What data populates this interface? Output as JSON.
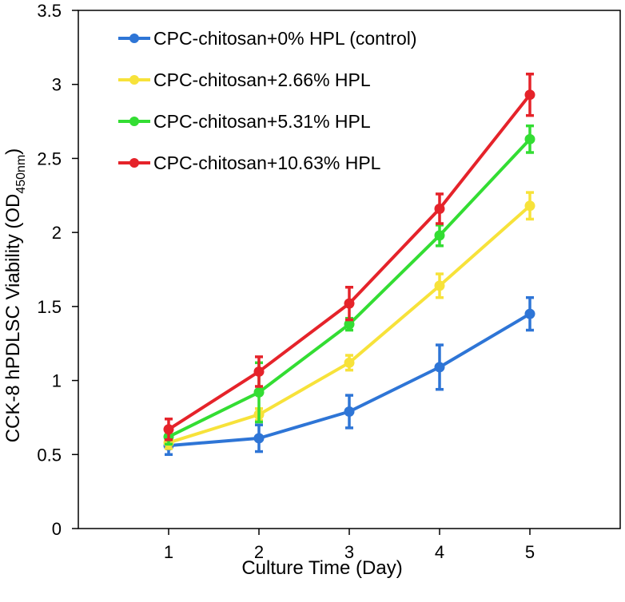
{
  "chart_data": {
    "type": "line",
    "title": "",
    "xlabel": "Culture Time (Day)",
    "ylabel_main": "CCK-8 hPDLSC Viability  (OD",
    "ylabel_sub": "450nm",
    "ylabel_close": ")",
    "x": [
      1,
      2,
      3,
      4,
      5
    ],
    "xlim": [
      0,
      6
    ],
    "ylim": [
      0,
      3.5
    ],
    "x_ticks": [
      "1",
      "2",
      "3",
      "4",
      "5"
    ],
    "y_ticks": [
      "0",
      "0.5",
      "1",
      "1.5",
      "2",
      "2.5",
      "3",
      "3.5"
    ],
    "y_tick_values": [
      0,
      0.5,
      1,
      1.5,
      2,
      2.5,
      3,
      3.5
    ],
    "legend_position": "top-left",
    "series": [
      {
        "name": "CPC-chitosan+0% HPL (control)",
        "color": "#2E75D6",
        "values": [
          0.56,
          0.61,
          0.79,
          1.09,
          1.45
        ],
        "errors": [
          0.06,
          0.09,
          0.11,
          0.15,
          0.11
        ]
      },
      {
        "name": "CPC-chitosan+2.66% HPL",
        "color": "#F7E23A",
        "values": [
          0.58,
          0.77,
          1.12,
          1.64,
          2.18
        ],
        "errors": [
          0.04,
          0.04,
          0.05,
          0.08,
          0.09
        ]
      },
      {
        "name": "CPC-chitosan+5.31% HPL",
        "color": "#33DD33",
        "values": [
          0.62,
          0.92,
          1.38,
          1.98,
          2.63
        ],
        "errors": [
          0.05,
          0.2,
          0.04,
          0.07,
          0.09
        ]
      },
      {
        "name": "CPC-chitosan+10.63% HPL",
        "color": "#E5232A",
        "values": [
          0.67,
          1.06,
          1.52,
          2.16,
          2.93
        ],
        "errors": [
          0.07,
          0.1,
          0.11,
          0.1,
          0.14
        ]
      }
    ]
  }
}
